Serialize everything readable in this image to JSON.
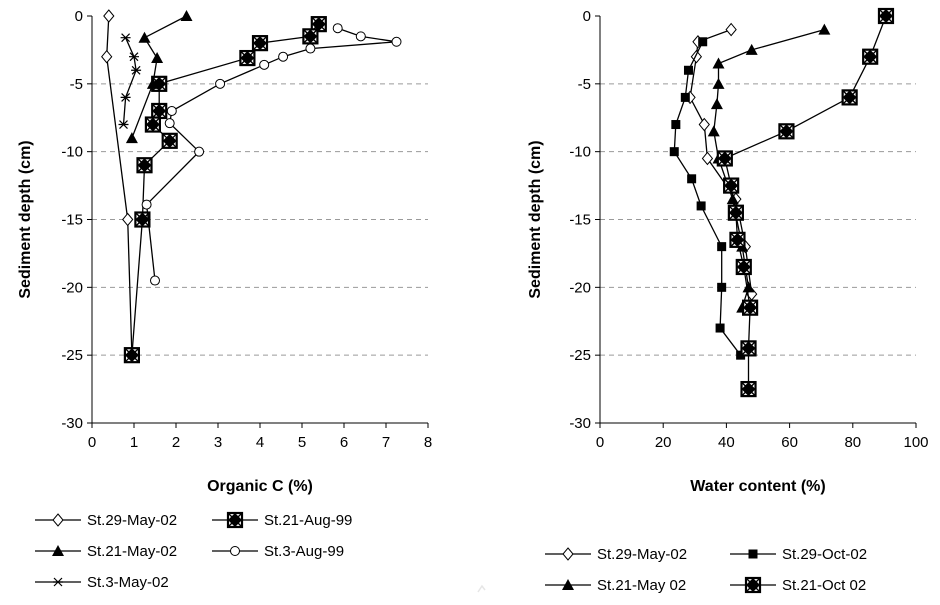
{
  "chart_data": [
    {
      "type": "line",
      "xlabel": "Organic C (%)",
      "ylabel": "Sediment depth (cm)",
      "xlim": [
        0,
        8
      ],
      "ylim": [
        -30,
        0
      ],
      "xticks": [
        "0",
        "1",
        "2",
        "3",
        "4",
        "5",
        "6",
        "7",
        "8"
      ],
      "yticks": [
        "0",
        "-5",
        "-10",
        "-15",
        "-20",
        "-25",
        "-30"
      ],
      "grid": "horizontal dashed",
      "legend_position": "bottom",
      "series": [
        {
          "name": "St.29-May-02",
          "marker": "diamond-open",
          "points": [
            [
              0.4,
              0
            ],
            [
              0.35,
              -3
            ],
            [
              0.85,
              -15
            ],
            [
              0.95,
              -25
            ]
          ]
        },
        {
          "name": "St.21-Aug-99",
          "marker": "box-x",
          "points": [
            [
              5.4,
              -0.6
            ],
            [
              5.2,
              -1.5
            ],
            [
              4.0,
              -2.0
            ],
            [
              3.7,
              -3.1
            ],
            [
              1.6,
              -5.0
            ],
            [
              1.6,
              -7.0
            ],
            [
              1.45,
              -8.0
            ],
            [
              1.85,
              -9.2
            ],
            [
              1.25,
              -11.0
            ],
            [
              1.2,
              -15.0
            ],
            [
              0.95,
              -25.0
            ]
          ]
        },
        {
          "name": "St.21-May-02",
          "marker": "triangle-filled",
          "points": [
            [
              2.25,
              0
            ],
            [
              1.25,
              -1.6
            ],
            [
              1.55,
              -3.1
            ],
            [
              1.45,
              -5.0
            ],
            [
              0.95,
              -9.0
            ]
          ]
        },
        {
          "name": "St.3-Aug-99",
          "marker": "circle-open",
          "points": [
            [
              5.85,
              -0.9
            ],
            [
              6.4,
              -1.5
            ],
            [
              7.25,
              -1.9
            ],
            [
              5.2,
              -2.4
            ],
            [
              4.55,
              -3.0
            ],
            [
              4.1,
              -3.6
            ],
            [
              3.05,
              -5.0
            ],
            [
              1.9,
              -7.0
            ],
            [
              1.85,
              -7.9
            ],
            [
              2.55,
              -10.0
            ],
            [
              1.3,
              -13.9
            ],
            [
              1.5,
              -19.5
            ]
          ]
        },
        {
          "name": "St.3-May-02",
          "marker": "star",
          "points": [
            [
              0.8,
              -1.6
            ],
            [
              1.0,
              -3.0
            ],
            [
              1.05,
              -4.0
            ],
            [
              0.8,
              -6.0
            ],
            [
              0.75,
              -8.0
            ]
          ]
        }
      ]
    },
    {
      "type": "line",
      "xlabel": "Water content (%)",
      "ylabel": "Sediment depth (cm)",
      "xlim": [
        0,
        100
      ],
      "ylim": [
        -30,
        0
      ],
      "xticks": [
        "0",
        "20",
        "40",
        "60",
        "80",
        "100"
      ],
      "yticks": [
        "0",
        "-5",
        "-10",
        "-15",
        "-20",
        "-25",
        "-30"
      ],
      "grid": "horizontal dashed",
      "legend_position": "bottom",
      "series": [
        {
          "name": "St.29-May-02",
          "marker": "diamond-open",
          "points": [
            [
              41.5,
              -1.0
            ],
            [
              31.0,
              -1.9
            ],
            [
              30.5,
              -3.0
            ],
            [
              28.5,
              -6.0
            ],
            [
              33.0,
              -8.0
            ],
            [
              34.0,
              -10.5
            ],
            [
              43.0,
              -13.5
            ],
            [
              46.0,
              -17.0
            ],
            [
              48.0,
              -20.5
            ],
            [
              47.5,
              -21.5
            ]
          ]
        },
        {
          "name": "St.29-Oct-02",
          "marker": "square-filled",
          "points": [
            [
              32.5,
              -1.9
            ],
            [
              28.0,
              -4.0
            ],
            [
              27.0,
              -6.0
            ],
            [
              24.0,
              -8.0
            ],
            [
              23.5,
              -10.0
            ],
            [
              29.0,
              -12.0
            ],
            [
              32.0,
              -14.0
            ],
            [
              38.5,
              -17.0
            ],
            [
              38.5,
              -20.0
            ],
            [
              38.0,
              -23.0
            ],
            [
              44.5,
              -25.0
            ]
          ]
        },
        {
          "name": "St.21-May 02",
          "marker": "triangle-filled",
          "points": [
            [
              71.0,
              -1.0
            ],
            [
              48.0,
              -2.5
            ],
            [
              37.5,
              -3.5
            ],
            [
              37.5,
              -5.0
            ],
            [
              37.0,
              -6.5
            ],
            [
              36.0,
              -8.5
            ],
            [
              37.5,
              -10.5
            ],
            [
              42.0,
              -13.5
            ],
            [
              45.0,
              -17.0
            ],
            [
              47.0,
              -20.0
            ],
            [
              45.0,
              -21.5
            ]
          ]
        },
        {
          "name": "St.21-Oct 02",
          "marker": "box-x",
          "points": [
            [
              90.5,
              0.0
            ],
            [
              85.5,
              -3.0
            ],
            [
              79.0,
              -6.0
            ],
            [
              59.0,
              -8.5
            ],
            [
              39.5,
              -10.5
            ],
            [
              41.5,
              -12.5
            ],
            [
              43.0,
              -14.5
            ],
            [
              43.5,
              -16.5
            ],
            [
              45.5,
              -18.5
            ],
            [
              47.5,
              -21.5
            ],
            [
              47.0,
              -24.5
            ],
            [
              47.0,
              -27.5
            ]
          ]
        }
      ]
    }
  ]
}
